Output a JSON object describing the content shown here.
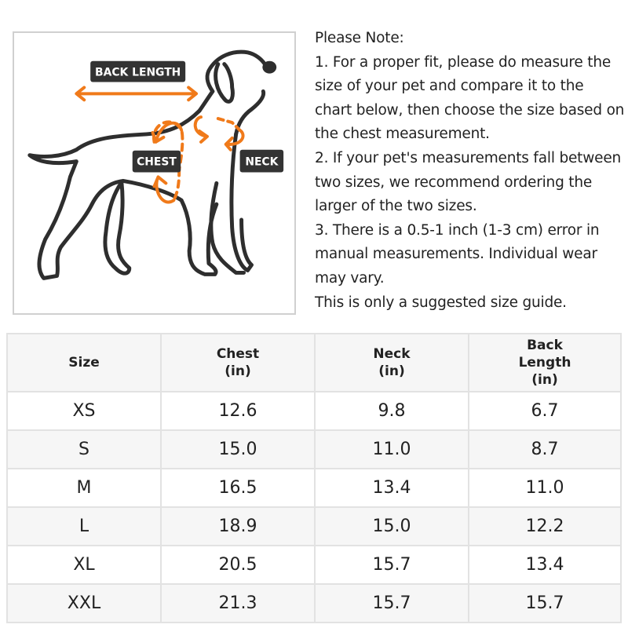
{
  "illustration": {
    "labels": {
      "back_length": "BACK LENGTH",
      "chest": "CHEST",
      "neck": "NECK"
    },
    "colors": {
      "outline": "#2e2e2e",
      "arrow": "#f07a1a",
      "label_bg": "#333333"
    }
  },
  "notes": {
    "title": "Please Note:",
    "items": [
      "1. For a proper fit, please do measure the size of your pet and compare it to the chart below, then choose the size based on the chest measurement.",
      "2. If your pet's measurements fall between two sizes, we recommend ordering the larger of the two sizes.",
      "3. There is a 0.5-1 inch (1-3 cm) error in manual measurements. Individual wear may vary."
    ],
    "footer": "This is only a suggested size guide."
  },
  "table": {
    "headers": [
      {
        "line1": "Size",
        "line2": "",
        "line3": ""
      },
      {
        "line1": "Chest",
        "line2": "(in)",
        "line3": ""
      },
      {
        "line1": "Neck",
        "line2": "(in)",
        "line3": ""
      },
      {
        "line1": "Back",
        "line2": "Length",
        "line3": "(in)"
      }
    ],
    "rows": [
      [
        "XS",
        "12.6",
        "9.8",
        "6.7"
      ],
      [
        "S",
        "15.0",
        "11.0",
        "8.7"
      ],
      [
        "M",
        "16.5",
        "13.4",
        "11.0"
      ],
      [
        "L",
        "18.9",
        "15.0",
        "12.2"
      ],
      [
        "XL",
        "20.5",
        "15.7",
        "13.4"
      ],
      [
        "XXL",
        "21.3",
        "15.7",
        "15.7"
      ]
    ]
  }
}
